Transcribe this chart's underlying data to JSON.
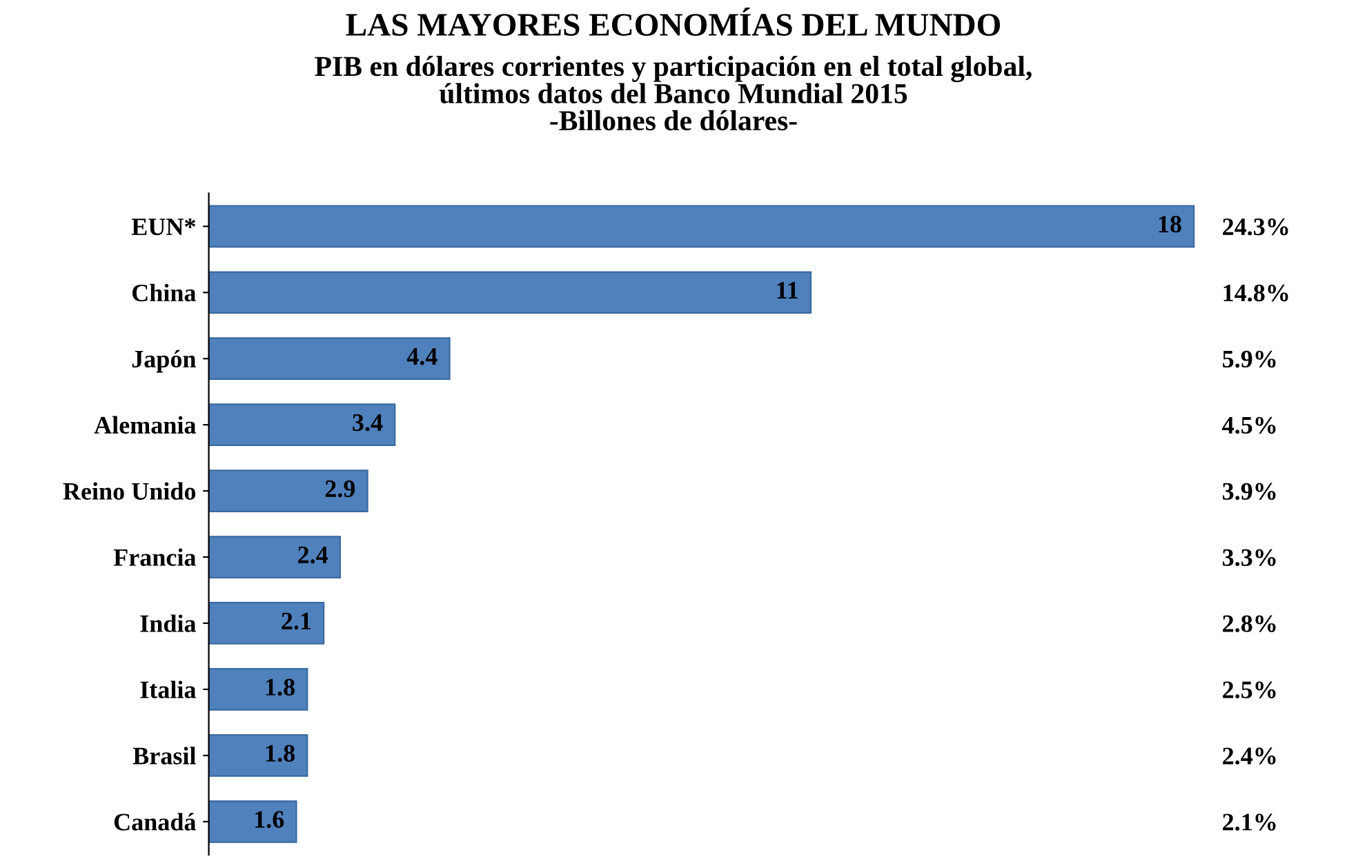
{
  "chart_data": {
    "type": "bar",
    "orientation": "horizontal",
    "title": "LAS MAYORES ECONOMÍAS DEL MUNDO",
    "subtitle": "PIB en dólares corrientes y participación en el total global,\núltimos datos del Banco Mundial 2015\n-Billones de dólares-",
    "categories": [
      "EUN*",
      "China",
      "Japón",
      "Alemania",
      "Reino Unido",
      "Francia",
      "India",
      "Italia",
      "Brasil",
      "Canadá"
    ],
    "y2_categories": [
      "24.3%",
      "14.8%",
      "5.9%",
      "4.5%",
      "3.9%",
      "3.3%",
      "2.8%",
      "2.5%",
      "2.4%",
      "2.1%"
    ],
    "values": [
      18,
      11,
      4.4,
      3.4,
      2.9,
      2.4,
      2.1,
      1.8,
      1.8,
      1.6
    ],
    "color": "#4f81bd",
    "data_labels": true,
    "grid": false,
    "legend": false
  }
}
